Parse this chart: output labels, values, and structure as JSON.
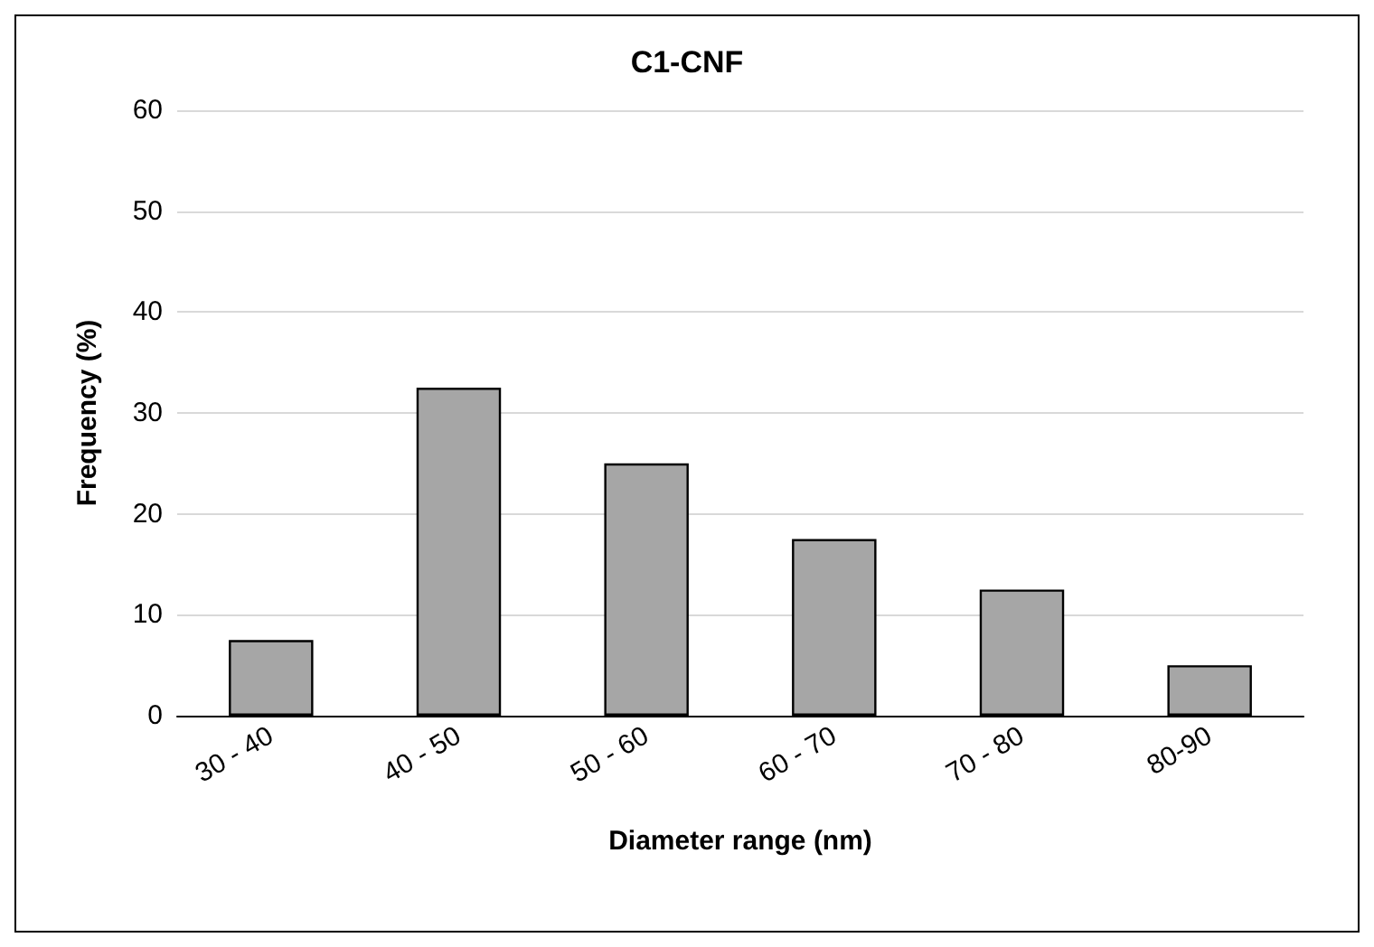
{
  "chart_data": {
    "type": "bar",
    "title": "C1-CNF",
    "xlabel": "Diameter range (nm)",
    "ylabel": "Frequency (%)",
    "categories": [
      "30 - 40",
      "40 - 50",
      "50 - 60",
      "60 - 70",
      "70 - 80",
      "80-90"
    ],
    "values": [
      7.5,
      32.5,
      25,
      17.5,
      12.5,
      5
    ],
    "color": "#a6a6a6",
    "ylim": [
      0,
      60
    ],
    "yticks": [
      0,
      10,
      20,
      30,
      40,
      50,
      60
    ],
    "grid": "y"
  }
}
